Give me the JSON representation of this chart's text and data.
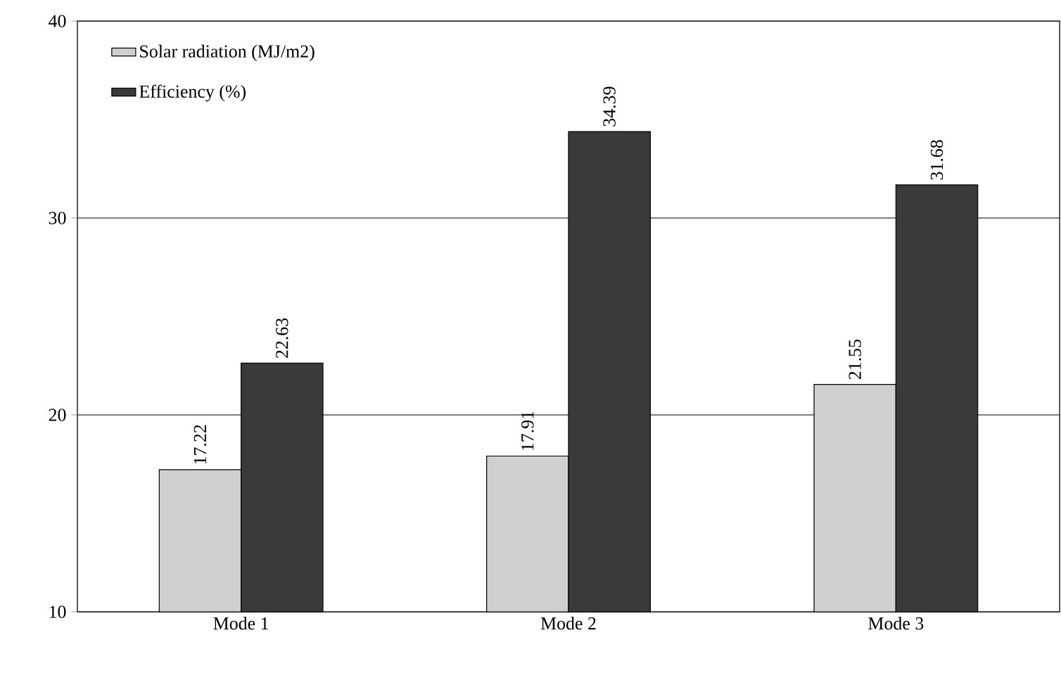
{
  "chart_data": {
    "type": "bar",
    "categories": [
      "Mode 1",
      "Mode 2",
      "Mode 3"
    ],
    "series": [
      {
        "name": "Solar radiation (MJ/m2)",
        "color": "#cfcfcf",
        "values": [
          17.22,
          17.91,
          21.55
        ]
      },
      {
        "name": "Efficiency (%)",
        "color": "#3a3a3a",
        "values": [
          22.63,
          34.39,
          31.68
        ]
      }
    ],
    "ylim": [
      10,
      40
    ],
    "yticks": [
      10,
      20,
      30,
      40
    ],
    "grid": "y",
    "legend": "top left",
    "data_labels": true
  }
}
